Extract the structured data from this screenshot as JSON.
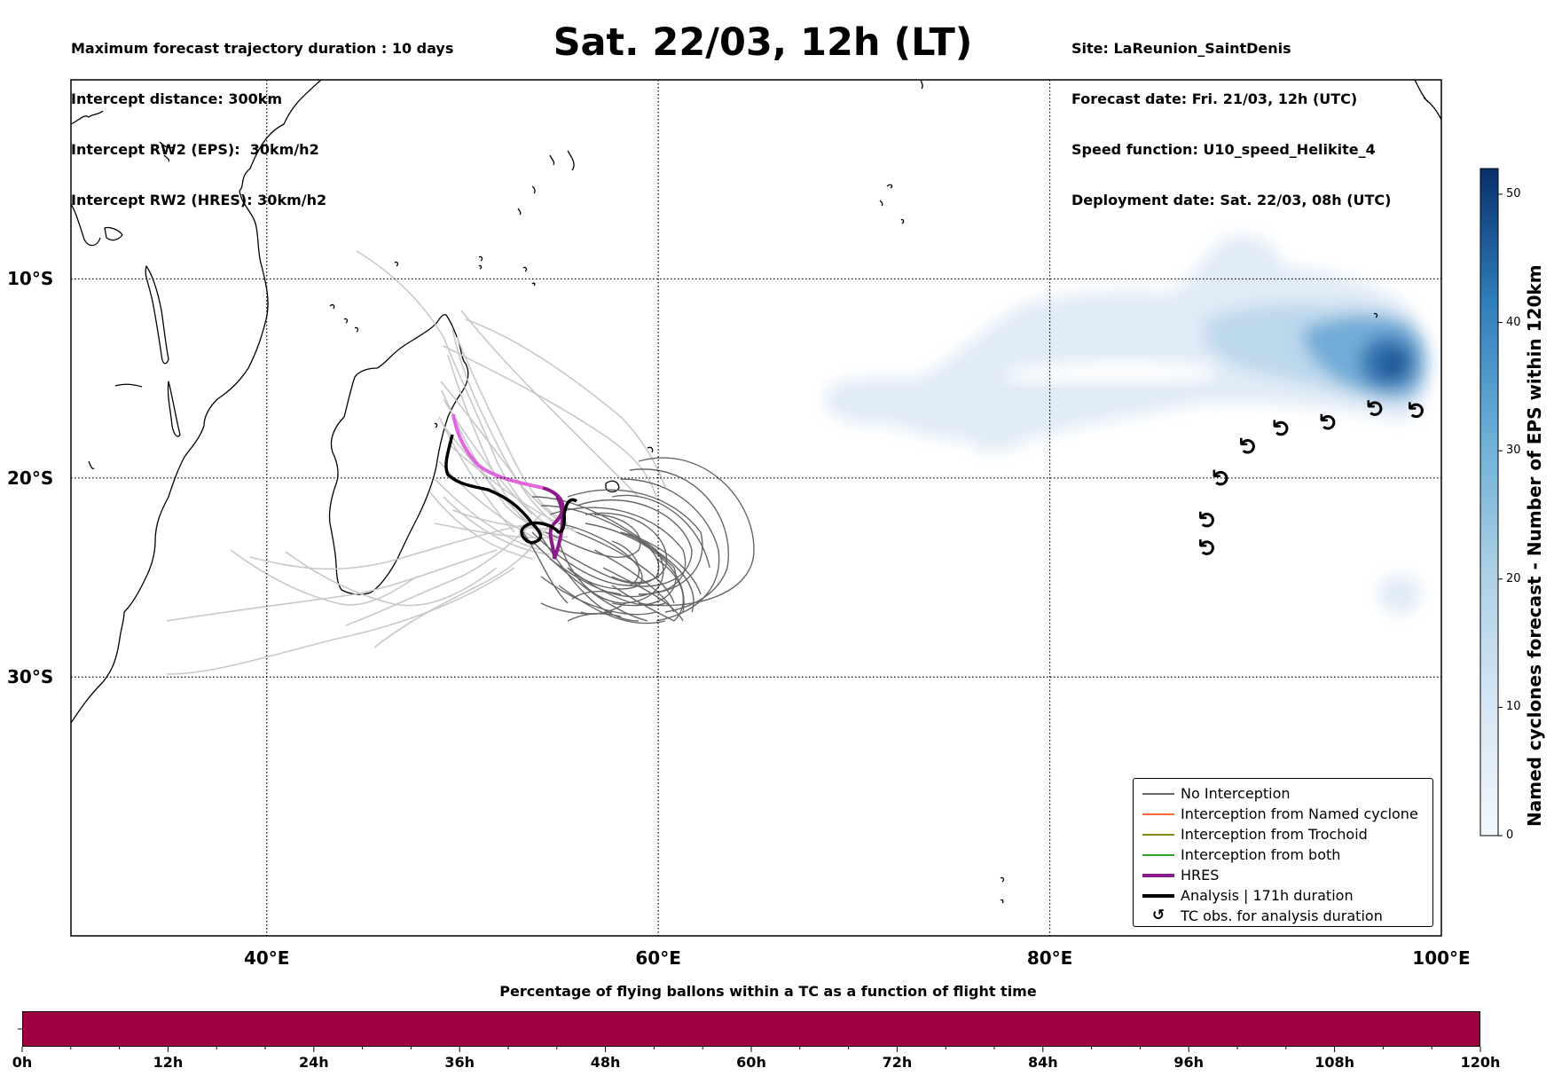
{
  "header": {
    "left_lines": [
      "Maximum forecast trajectory duration : 10 days",
      "Intercept distance: 300km",
      "Intercept RW2 (EPS):  30km/h2",
      "Intercept RW2 (HRES): 30km/h2"
    ],
    "title": "Sat. 22/03, 12h (LT)",
    "right_lines": [
      "Site: LaReunion_SaintDenis",
      "Forecast date: Fri. 21/03, 12h (UTC)",
      "Speed function: U10_speed_Helikite_4",
      "Deployment date: Sat. 22/03, 08h (UTC)"
    ]
  },
  "map": {
    "lon_range": [
      30,
      100
    ],
    "lat_range": [
      -43,
      0
    ],
    "lon_labels": [
      "40°E",
      "60°E",
      "80°E",
      "100°E"
    ],
    "lat_labels": [
      "10°S",
      "20°S",
      "30°S"
    ],
    "lon_ticks": [
      40,
      60,
      80,
      100
    ],
    "lat_ticks": [
      -10,
      -20,
      -30
    ],
    "coast_color": "#000000",
    "grid_line_style": "dotted",
    "ensemble_color_near": "#c8c8c8",
    "ensemble_color_far": "#666666",
    "hres_color": "#8b1a8b",
    "hres_early_color": "#e066e0",
    "analysis_color": "#000000",
    "density_colormap": [
      "#e3eef8",
      "#08306b"
    ],
    "tc_obs_symbol": "↺",
    "tc_obs_positions": [
      [
        88.1,
        -23.5
      ],
      [
        88.1,
        -22.1
      ],
      [
        88.8,
        -20.0
      ],
      [
        90.2,
        -18.4
      ],
      [
        91.9,
        -17.5
      ],
      [
        94.3,
        -17.2
      ],
      [
        96.7,
        -16.5
      ],
      [
        98.8,
        -16.6
      ]
    ]
  },
  "legend": {
    "items": [
      {
        "label": "No Interception",
        "color": "#666666",
        "style": "thin"
      },
      {
        "label": "Interception from Named cyclone",
        "color": "#ff6a3d",
        "style": "thin"
      },
      {
        "label": "Interception from Trochoid",
        "color": "#8b8b1a",
        "style": "thin"
      },
      {
        "label": "Interception from both",
        "color": "#2ca02c",
        "style": "thin"
      },
      {
        "label": "HRES",
        "color": "#8b1a8b",
        "style": "thick"
      },
      {
        "label": "Analysis | 171h duration",
        "color": "#000000",
        "style": "thick"
      },
      {
        "label": "TC obs. for analysis duration",
        "color": "#000000",
        "style": "symbol",
        "symbol": "↺"
      }
    ]
  },
  "colorbar": {
    "title": "Named cyclones forecast - Number of EPS within 120km",
    "ticks": [
      "0",
      "10",
      "20",
      "30",
      "40",
      "50"
    ],
    "tick_values": [
      0,
      10,
      20,
      30,
      40,
      50
    ],
    "max_value": 52,
    "color_low": "#f2f7fd",
    "color_high": "#08306b"
  },
  "bottom_bar": {
    "title": "Percentage of flying ballons within a TC as a function of flight time",
    "ticks": [
      "0h",
      "12h",
      "24h",
      "36h",
      "48h",
      "60h",
      "72h",
      "84h",
      "96h",
      "108h",
      "120h"
    ],
    "tick_hours": [
      0,
      12,
      24,
      36,
      48,
      60,
      72,
      84,
      96,
      108,
      120
    ],
    "fill_color": "#9e0142",
    "percent_values": [
      0,
      0,
      0,
      0,
      0,
      0,
      0,
      0,
      0,
      0,
      0
    ]
  }
}
